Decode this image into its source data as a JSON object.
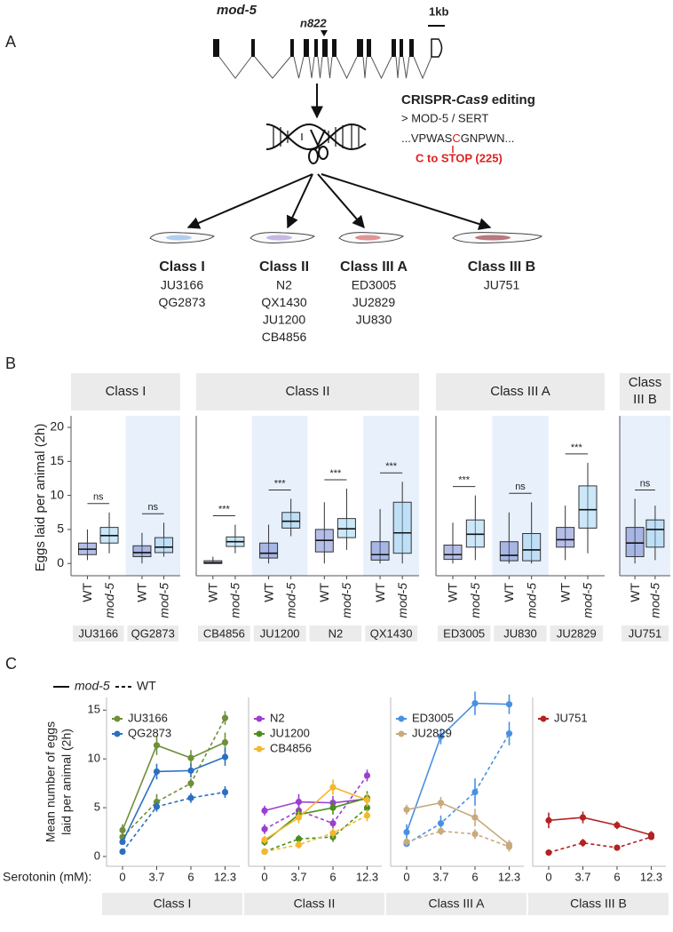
{
  "panel_a": {
    "label": "A",
    "gene": "mod-5",
    "allele": "n822",
    "scale": "1kb",
    "crispr": [
      "CRISPR-",
      "Cas9",
      " editing"
    ],
    "target": "> MOD-5 / SERT",
    "sequence": [
      "...VPWAS",
      "C",
      "GNPWN..."
    ],
    "mutation": "C to STOP (225)",
    "classes": [
      {
        "name": "Class I",
        "strains": [
          "JU3166",
          "QG2873"
        ]
      },
      {
        "name": "Class II",
        "strains": [
          "N2",
          "QX1430",
          "JU1200",
          "CB4856"
        ]
      },
      {
        "name": "Class III A",
        "strains": [
          "ED3005",
          "JU2829",
          "JU830"
        ]
      },
      {
        "name": "Class III B",
        "strains": [
          "JU751"
        ]
      }
    ]
  },
  "chart_data": [
    {
      "type": "box",
      "panel": "B",
      "ylabel": "Eggs laid per animal (2h)",
      "ylim": [
        -1.8,
        21.7
      ],
      "yticks": [
        0,
        5,
        10,
        15,
        20
      ],
      "conditions": [
        "WT",
        "mod-5"
      ],
      "colors": [
        "#5b6fc8",
        "#8ec9ef"
      ],
      "facets": [
        {
          "label": "Class I",
          "strains": [
            {
              "name": "JU3166",
              "shaded": false,
              "significance": "ns",
              "boxes": [
                [
                  0.5,
                  1.3,
                  2.1,
                  3.0,
                  5.0
                ],
                [
                  1.5,
                  3.0,
                  4.1,
                  5.3,
                  7.5
                ]
              ]
            },
            {
              "name": "QG2873",
              "shaded": true,
              "significance": "ns",
              "boxes": [
                [
                  0,
                  1.0,
                  1.6,
                  2.6,
                  4.5
                ],
                [
                  1,
                  1.6,
                  2.4,
                  3.8,
                  6
                ]
              ]
            }
          ]
        },
        {
          "label": "Class II",
          "strains": [
            {
              "name": "CB4856",
              "shaded": false,
              "significance": "***",
              "boxes": [
                [
                  0,
                  0,
                  0.1,
                  0.4,
                  1
                ],
                [
                  1.5,
                  2.5,
                  3.2,
                  3.9,
                  5.7
                ]
              ]
            },
            {
              "name": "JU1200",
              "shaded": true,
              "significance": "***",
              "boxes": [
                [
                  0,
                  0.8,
                  1.5,
                  3.0,
                  5.7
                ],
                [
                  4,
                  5.2,
                  6.2,
                  7.5,
                  9.5
                ]
              ]
            },
            {
              "name": "N2",
              "shaded": false,
              "significance": "***",
              "boxes": [
                [
                  0,
                  1.7,
                  3.4,
                  5.0,
                  9
                ],
                [
                  2,
                  3.8,
                  5.1,
                  6.6,
                  11
                ]
              ]
            },
            {
              "name": "QX1430",
              "shaded": true,
              "significance": "***",
              "boxes": [
                [
                  0,
                  0.5,
                  1.3,
                  3.2,
                  8
                ],
                [
                  0,
                  1.5,
                  4.5,
                  9,
                  12
                ]
              ]
            }
          ]
        },
        {
          "label": "Class III A",
          "strains": [
            {
              "name": "ED3005",
              "shaded": false,
              "significance": "***",
              "boxes": [
                [
                  0,
                  0.6,
                  1.3,
                  2.7,
                  6
                ],
                [
                  0.5,
                  2.4,
                  4.3,
                  6.4,
                  10
                ]
              ]
            },
            {
              "name": "JU830",
              "shaded": true,
              "significance": "ns",
              "boxes": [
                [
                  0,
                  0.4,
                  1.2,
                  3.2,
                  7.5
                ],
                [
                  0,
                  0.4,
                  2.0,
                  4.4,
                  9
                ]
              ]
            },
            {
              "name": "JU2829",
              "shaded": false,
              "significance": "***",
              "boxes": [
                [
                  0.5,
                  2.4,
                  3.5,
                  5.3,
                  8.5
                ],
                [
                  1.5,
                  5.2,
                  7.9,
                  11.4,
                  14.8
                ]
              ]
            }
          ]
        },
        {
          "label": "Class III B",
          "strains": [
            {
              "name": "JU751",
              "shaded": true,
              "significance": "ns",
              "boxes": [
                [
                  0,
                  1.0,
                  3.0,
                  5.3,
                  9.5
                ],
                [
                  0.5,
                  2.4,
                  5.0,
                  6.4,
                  8.5
                ]
              ]
            }
          ]
        }
      ]
    },
    {
      "type": "line",
      "panel": "C",
      "ylabel": [
        "Mean number of eggs",
        "laid per animal (2h)"
      ],
      "xlabel": "Serotonin (mM):",
      "categories": [
        "0",
        "3.7",
        "6",
        "12.3"
      ],
      "ylim": [
        -1,
        16.3
      ],
      "yticks": [
        0,
        5,
        10,
        15
      ],
      "legend": [
        {
          "name": "mod-5",
          "dash": "solid"
        },
        {
          "name": "WT",
          "dash": "dashed"
        }
      ],
      "facets": [
        {
          "label": "Class I",
          "series": [
            {
              "name": "JU3166",
              "color": "#6f8f3a",
              "mod5": [
                2.7,
                11.4,
                10.1,
                11.7
              ],
              "mod5_err": [
                0.6,
                1.0,
                0.8,
                1.0
              ],
              "wt": [
                2.0,
                5.6,
                7.5,
                14.2
              ],
              "wt_err": [
                0.5,
                0.8,
                0.5,
                0.7
              ]
            },
            {
              "name": "QG2873",
              "color": "#2a6fc2",
              "mod5": [
                1.5,
                8.7,
                8.8,
                10.2
              ],
              "mod5_err": [
                0.3,
                0.8,
                0.7,
                0.9
              ],
              "wt": [
                0.5,
                5.1,
                6.0,
                6.6
              ],
              "wt_err": [
                0.2,
                0.5,
                0.5,
                0.6
              ]
            }
          ]
        },
        {
          "label": "Class II",
          "series": [
            {
              "name": "N2",
              "color": "#9b3fd0",
              "mod5": [
                4.7,
                5.6,
                5.5,
                5.9
              ],
              "mod5_err": [
                0.5,
                0.8,
                0.7,
                0.7
              ],
              "wt": [
                2.8,
                4.7,
                3.4,
                8.3
              ],
              "wt_err": [
                0.5,
                0.6,
                0.5,
                0.6
              ]
            },
            {
              "name": "JU1200",
              "color": "#4a8f1c",
              "mod5": [
                1.5,
                4.3,
                5.0,
                6.0
              ],
              "mod5_err": [
                0.4,
                0.6,
                0.7,
                0.7
              ],
              "wt": [
                0.5,
                1.8,
                2.0,
                5.0
              ],
              "wt_err": [
                0.2,
                0.4,
                0.5,
                0.6
              ]
            },
            {
              "name": "CB4856",
              "color": "#f4b82a",
              "mod5": [
                1.7,
                4.0,
                7.1,
                5.8
              ],
              "mod5_err": [
                0.4,
                0.6,
                0.8,
                0.7
              ],
              "wt": [
                0.5,
                1.2,
                2.4,
                4.2
              ],
              "wt_err": [
                0.2,
                0.4,
                0.5,
                0.6
              ]
            }
          ]
        },
        {
          "label": "Class III A",
          "series": [
            {
              "name": "ED3005",
              "color": "#4a90e2",
              "mod5": [
                2.5,
                12.3,
                15.7,
                15.6
              ],
              "mod5_err": [
                0.8,
                0.8,
                1.2,
                1.0
              ],
              "wt": [
                1.3,
                3.4,
                6.6,
                12.6
              ],
              "wt_err": [
                0.3,
                0.8,
                1.4,
                1.2
              ]
            },
            {
              "name": "JU2829",
              "color": "#c8aa7d",
              "mod5": [
                4.8,
                5.5,
                4.0,
                1.2
              ],
              "mod5_err": [
                0.5,
                0.6,
                0.9,
                0.5
              ],
              "wt": [
                1.5,
                2.6,
                2.3,
                1.0
              ],
              "wt_err": [
                0.4,
                0.4,
                0.5,
                0.5
              ]
            }
          ]
        },
        {
          "label": "Class III B",
          "series": [
            {
              "name": "JU751",
              "color": "#b22222",
              "mod5": [
                3.7,
                4.0,
                3.2,
                2.2
              ],
              "mod5_err": [
                0.8,
                0.6,
                0.4,
                0.4
              ],
              "wt": [
                0.4,
                1.4,
                0.9,
                2.0
              ],
              "wt_err": [
                0.1,
                0.4,
                0.2,
                0.3
              ]
            }
          ]
        }
      ]
    }
  ]
}
